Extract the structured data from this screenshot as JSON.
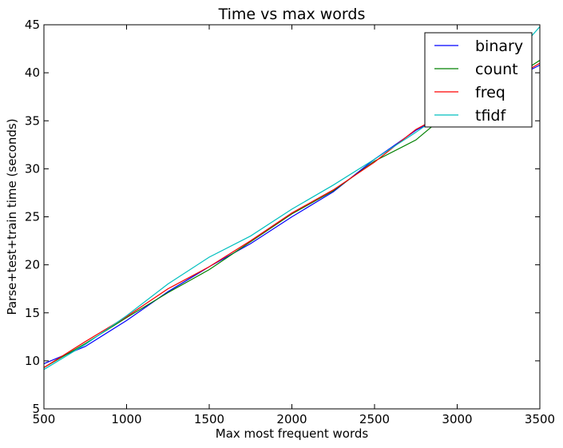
{
  "chart_data": {
    "type": "line",
    "title": "Time vs max words",
    "xlabel": "Max most frequent words",
    "ylabel": "Parse+test+train time (seconds)",
    "xlim": [
      500,
      3500
    ],
    "ylim": [
      5,
      45
    ],
    "xticks": [
      500,
      1000,
      1500,
      2000,
      2500,
      3000,
      3500
    ],
    "yticks": [
      5,
      10,
      15,
      20,
      25,
      30,
      35,
      40,
      45
    ],
    "legend_position": "top-right",
    "grid": false,
    "x": [
      500,
      750,
      1000,
      1250,
      1500,
      1750,
      2000,
      2250,
      2500,
      2750,
      3000,
      3250,
      3500
    ],
    "series": [
      {
        "name": "binary",
        "color": "#0000ff",
        "values": [
          9.7,
          11.5,
          14.2,
          17.2,
          19.8,
          22.2,
          25.0,
          27.6,
          31.0,
          34.0,
          36.3,
          38.6,
          40.8
        ]
      },
      {
        "name": "count",
        "color": "#008000",
        "values": [
          9.3,
          11.8,
          14.5,
          17.1,
          19.5,
          22.4,
          25.3,
          27.7,
          30.8,
          33.0,
          36.6,
          38.5,
          41.3
        ]
      },
      {
        "name": "freq",
        "color": "#ff0000",
        "values": [
          9.3,
          12.0,
          14.6,
          17.5,
          19.8,
          22.5,
          25.4,
          27.8,
          30.7,
          34.1,
          36.4,
          38.5,
          41.0
        ]
      },
      {
        "name": "tfidf",
        "color": "#00bfbf",
        "values": [
          9.1,
          11.7,
          14.7,
          18.0,
          20.8,
          23.0,
          25.8,
          28.3,
          31.0,
          33.8,
          36.8,
          39.9,
          44.8
        ]
      }
    ]
  }
}
